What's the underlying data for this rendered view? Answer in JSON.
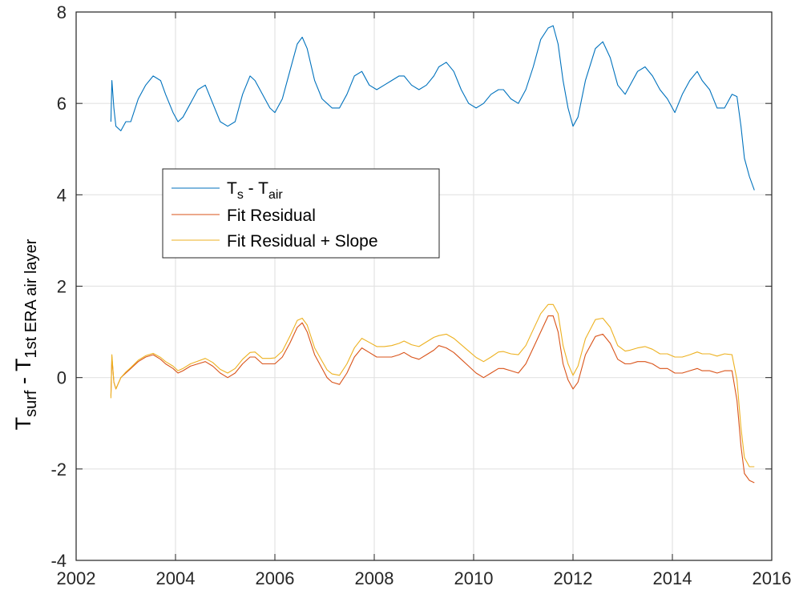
{
  "chart_data": {
    "type": "line",
    "xlim": [
      2002,
      2016
    ],
    "ylim": [
      -4,
      8
    ],
    "grid": true,
    "legend_position": "upper-left",
    "x_ticks": [
      "2002",
      "2004",
      "2006",
      "2008",
      "2010",
      "2012",
      "2014",
      "2016"
    ],
    "y_ticks": [
      "-4",
      "-2",
      "0",
      "2",
      "4",
      "6",
      "8"
    ],
    "ylabel": {
      "main": "T",
      "sub1": "surf",
      "mid": " - T",
      "sub2": "1st ERA air layer"
    },
    "series": [
      {
        "name": "T_s - T_air",
        "legend": {
          "main": "T",
          "sub1": "s",
          "mid": " - T",
          "sub2": "air"
        },
        "color": "#0072BD",
        "x": [
          2002.7,
          2002.72,
          2002.76,
          2002.8,
          2002.9,
          2003.0,
          2003.1,
          2003.25,
          2003.4,
          2003.55,
          2003.7,
          2003.8,
          2003.95,
          2004.05,
          2004.15,
          2004.3,
          2004.45,
          2004.6,
          2004.75,
          2004.9,
          2005.05,
          2005.2,
          2005.35,
          2005.5,
          2005.6,
          2005.75,
          2005.9,
          2006.0,
          2006.15,
          2006.3,
          2006.45,
          2006.55,
          2006.65,
          2006.8,
          2006.95,
          2007.05,
          2007.15,
          2007.3,
          2007.45,
          2007.6,
          2007.75,
          2007.9,
          2008.05,
          2008.2,
          2008.35,
          2008.5,
          2008.6,
          2008.75,
          2008.9,
          2009.05,
          2009.2,
          2009.3,
          2009.45,
          2009.6,
          2009.75,
          2009.9,
          2010.05,
          2010.2,
          2010.35,
          2010.5,
          2010.6,
          2010.75,
          2010.9,
          2011.05,
          2011.2,
          2011.35,
          2011.5,
          2011.6,
          2011.7,
          2011.8,
          2011.9,
          2012.0,
          2012.1,
          2012.25,
          2012.45,
          2012.6,
          2012.75,
          2012.9,
          2013.05,
          2013.15,
          2013.3,
          2013.45,
          2013.6,
          2013.75,
          2013.9,
          2014.05,
          2014.2,
          2014.35,
          2014.5,
          2014.6,
          2014.75,
          2014.9,
          2015.05,
          2015.2,
          2015.3,
          2015.38,
          2015.45,
          2015.55,
          2015.65
        ],
        "y": [
          5.6,
          6.5,
          5.9,
          5.5,
          5.4,
          5.6,
          5.6,
          6.1,
          6.4,
          6.6,
          6.5,
          6.2,
          5.8,
          5.6,
          5.7,
          6.0,
          6.3,
          6.4,
          6.0,
          5.6,
          5.5,
          5.6,
          6.2,
          6.6,
          6.5,
          6.2,
          5.9,
          5.8,
          6.1,
          6.7,
          7.3,
          7.45,
          7.2,
          6.5,
          6.1,
          6.0,
          5.9,
          5.9,
          6.2,
          6.6,
          6.7,
          6.4,
          6.3,
          6.4,
          6.5,
          6.6,
          6.6,
          6.4,
          6.3,
          6.4,
          6.6,
          6.8,
          6.9,
          6.7,
          6.3,
          6.0,
          5.9,
          6.0,
          6.2,
          6.3,
          6.3,
          6.1,
          6.0,
          6.3,
          6.8,
          7.4,
          7.65,
          7.7,
          7.3,
          6.5,
          5.9,
          5.5,
          5.7,
          6.5,
          7.2,
          7.35,
          7.0,
          6.4,
          6.2,
          6.4,
          6.7,
          6.8,
          6.6,
          6.3,
          6.1,
          5.8,
          6.2,
          6.5,
          6.7,
          6.5,
          6.3,
          5.9,
          5.9,
          6.2,
          6.15,
          5.5,
          4.8,
          4.4,
          4.1
        ]
      },
      {
        "name": "Fit Residual",
        "legend": {
          "main": "Fit Residual"
        },
        "color": "#D95319",
        "x": [
          2002.7,
          2002.72,
          2002.76,
          2002.8,
          2002.9,
          2003.0,
          2003.1,
          2003.25,
          2003.4,
          2003.55,
          2003.7,
          2003.8,
          2003.95,
          2004.05,
          2004.15,
          2004.3,
          2004.45,
          2004.6,
          2004.75,
          2004.9,
          2005.05,
          2005.2,
          2005.35,
          2005.5,
          2005.6,
          2005.75,
          2005.9,
          2006.0,
          2006.15,
          2006.3,
          2006.45,
          2006.55,
          2006.65,
          2006.8,
          2006.95,
          2007.05,
          2007.15,
          2007.3,
          2007.45,
          2007.6,
          2007.75,
          2007.9,
          2008.05,
          2008.2,
          2008.35,
          2008.5,
          2008.6,
          2008.75,
          2008.9,
          2009.05,
          2009.2,
          2009.3,
          2009.45,
          2009.6,
          2009.75,
          2009.9,
          2010.05,
          2010.2,
          2010.35,
          2010.5,
          2010.6,
          2010.75,
          2010.9,
          2011.05,
          2011.2,
          2011.35,
          2011.5,
          2011.6,
          2011.7,
          2011.8,
          2011.9,
          2012.0,
          2012.1,
          2012.25,
          2012.45,
          2012.6,
          2012.75,
          2012.9,
          2013.05,
          2013.15,
          2013.3,
          2013.45,
          2013.6,
          2013.75,
          2013.9,
          2014.05,
          2014.2,
          2014.35,
          2014.5,
          2014.6,
          2014.75,
          2014.9,
          2015.05,
          2015.2,
          2015.3,
          2015.38,
          2015.45,
          2015.55,
          2015.65
        ],
        "y": [
          -0.4,
          0.45,
          -0.1,
          -0.25,
          0.0,
          0.1,
          0.2,
          0.35,
          0.45,
          0.5,
          0.4,
          0.3,
          0.2,
          0.1,
          0.15,
          0.25,
          0.3,
          0.35,
          0.25,
          0.1,
          0.0,
          0.1,
          0.3,
          0.45,
          0.45,
          0.3,
          0.3,
          0.3,
          0.45,
          0.75,
          1.1,
          1.2,
          1.0,
          0.5,
          0.2,
          0.0,
          -0.1,
          -0.15,
          0.1,
          0.45,
          0.65,
          0.55,
          0.45,
          0.45,
          0.45,
          0.5,
          0.55,
          0.45,
          0.4,
          0.5,
          0.6,
          0.7,
          0.65,
          0.55,
          0.4,
          0.25,
          0.1,
          0.0,
          0.1,
          0.2,
          0.2,
          0.15,
          0.1,
          0.3,
          0.65,
          1.0,
          1.35,
          1.35,
          1.0,
          0.3,
          -0.05,
          -0.25,
          -0.1,
          0.5,
          0.9,
          0.95,
          0.75,
          0.4,
          0.3,
          0.3,
          0.35,
          0.35,
          0.3,
          0.2,
          0.2,
          0.1,
          0.1,
          0.15,
          0.2,
          0.15,
          0.15,
          0.1,
          0.15,
          0.15,
          -0.5,
          -1.5,
          -2.1,
          -2.25,
          -2.3
        ]
      },
      {
        "name": "Fit Residual + Slope",
        "legend": {
          "main": "Fit Residual + Slope"
        },
        "color": "#EDB120",
        "x": [
          2002.7,
          2002.72,
          2002.76,
          2002.8,
          2002.9,
          2003.0,
          2003.1,
          2003.25,
          2003.4,
          2003.55,
          2003.7,
          2003.8,
          2003.95,
          2004.05,
          2004.15,
          2004.3,
          2004.45,
          2004.6,
          2004.75,
          2004.9,
          2005.05,
          2005.2,
          2005.35,
          2005.5,
          2005.6,
          2005.75,
          2005.9,
          2006.0,
          2006.15,
          2006.3,
          2006.45,
          2006.55,
          2006.65,
          2006.8,
          2006.95,
          2007.05,
          2007.15,
          2007.3,
          2007.45,
          2007.6,
          2007.75,
          2007.9,
          2008.05,
          2008.2,
          2008.35,
          2008.5,
          2008.6,
          2008.75,
          2008.9,
          2009.05,
          2009.2,
          2009.3,
          2009.45,
          2009.6,
          2009.75,
          2009.9,
          2010.05,
          2010.2,
          2010.35,
          2010.5,
          2010.6,
          2010.75,
          2010.9,
          2011.05,
          2011.2,
          2011.35,
          2011.5,
          2011.6,
          2011.7,
          2011.8,
          2011.9,
          2012.0,
          2012.1,
          2012.25,
          2012.45,
          2012.6,
          2012.75,
          2012.9,
          2013.05,
          2013.15,
          2013.3,
          2013.45,
          2013.6,
          2013.75,
          2013.9,
          2014.05,
          2014.2,
          2014.35,
          2014.5,
          2014.6,
          2014.75,
          2014.9,
          2015.05,
          2015.2,
          2015.3,
          2015.38,
          2015.45,
          2015.55,
          2015.65
        ],
        "y": [
          -0.45,
          0.5,
          -0.1,
          -0.25,
          0.0,
          0.12,
          0.22,
          0.38,
          0.48,
          0.53,
          0.44,
          0.35,
          0.25,
          0.15,
          0.2,
          0.3,
          0.36,
          0.42,
          0.33,
          0.18,
          0.1,
          0.2,
          0.4,
          0.55,
          0.56,
          0.42,
          0.42,
          0.43,
          0.58,
          0.9,
          1.25,
          1.3,
          1.15,
          0.65,
          0.36,
          0.17,
          0.08,
          0.05,
          0.3,
          0.65,
          0.86,
          0.77,
          0.68,
          0.68,
          0.7,
          0.75,
          0.8,
          0.72,
          0.68,
          0.78,
          0.88,
          0.92,
          0.95,
          0.86,
          0.72,
          0.58,
          0.44,
          0.35,
          0.45,
          0.56,
          0.57,
          0.52,
          0.5,
          0.7,
          1.05,
          1.4,
          1.6,
          1.6,
          1.4,
          0.7,
          0.3,
          0.05,
          0.25,
          0.85,
          1.27,
          1.3,
          1.1,
          0.7,
          0.58,
          0.6,
          0.65,
          0.68,
          0.62,
          0.52,
          0.52,
          0.45,
          0.45,
          0.5,
          0.56,
          0.52,
          0.52,
          0.47,
          0.52,
          0.5,
          -0.05,
          -1.1,
          -1.75,
          -1.95,
          -1.95
        ]
      }
    ]
  }
}
